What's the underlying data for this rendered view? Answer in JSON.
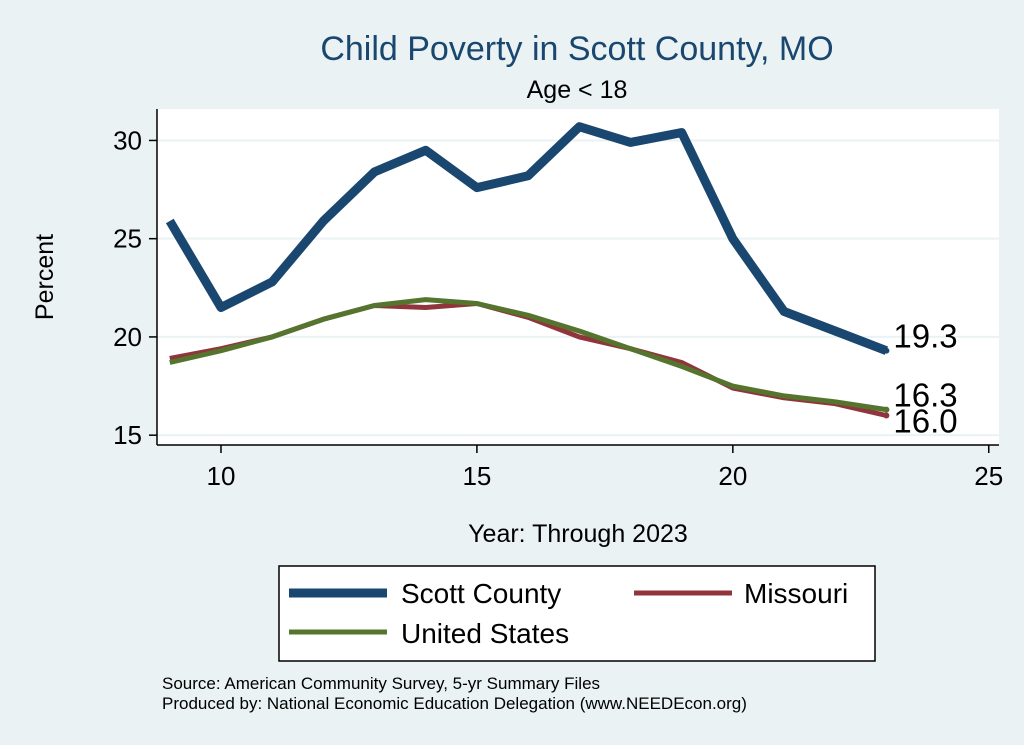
{
  "chart_data": {
    "type": "line",
    "title": "Child Poverty in Scott County, MO",
    "subtitle": "Age < 18",
    "xlabel": "Year: Through 2023",
    "ylabel": "Percent",
    "xlim": [
      8.75,
      25.2
    ],
    "ylim": [
      14.5,
      31.6
    ],
    "xticks": [
      10,
      15,
      20,
      25
    ],
    "yticks": [
      15,
      20,
      25,
      30
    ],
    "grid": true,
    "legend_position": "bottom",
    "x": [
      9,
      10,
      11,
      12,
      13,
      14,
      15,
      16,
      17,
      18,
      19,
      20,
      21,
      22,
      23
    ],
    "series": [
      {
        "name": "Scott County",
        "color": "#1a476f",
        "values": [
          25.9,
          21.5,
          22.8,
          25.9,
          28.4,
          29.5,
          27.6,
          28.2,
          30.7,
          29.9,
          30.4,
          25.0,
          21.3,
          20.3,
          19.3
        ],
        "end_label": "19.3"
      },
      {
        "name": "Missouri",
        "color": "#90353b",
        "values": [
          18.9,
          19.4,
          20.0,
          20.9,
          21.6,
          21.5,
          21.7,
          21.0,
          20.0,
          19.4,
          18.7,
          17.4,
          16.9,
          16.6,
          16.0
        ],
        "end_label": "16.0"
      },
      {
        "name": "United States",
        "color": "#55752f",
        "values": [
          18.7,
          19.3,
          20.0,
          20.9,
          21.6,
          21.9,
          21.7,
          21.1,
          20.3,
          19.4,
          18.5,
          17.5,
          17.0,
          16.7,
          16.3
        ],
        "end_label": "16.3"
      }
    ],
    "legend_entries": [
      "Scott County",
      "Missouri",
      "United States"
    ]
  },
  "footer": {
    "source": "Source: American Community Survey, 5-yr Summary Files",
    "produced_by": "Produced by: National Economic Education Delegation (www.NEEDEcon.org)"
  },
  "colors": {
    "background": "#eaf2f3",
    "plot_background": "#ffffff",
    "grid": "#eaf2f3"
  }
}
